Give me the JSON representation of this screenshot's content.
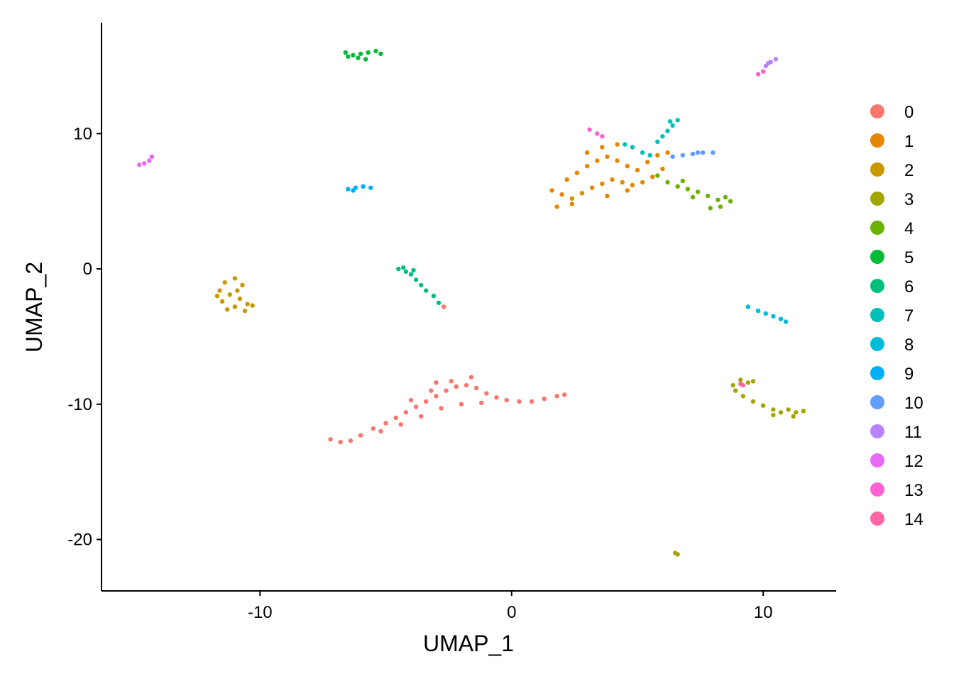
{
  "chart_data": {
    "type": "scatter",
    "title": "",
    "xlabel": "UMAP_1",
    "ylabel": "UMAP_2",
    "xlim": [
      -16.3,
      12.9
    ],
    "ylim": [
      -23.8,
      18.2
    ],
    "x_ticks": [
      -10,
      0,
      10
    ],
    "y_ticks": [
      -20,
      -10,
      0,
      10
    ],
    "x_tick_labels": [
      "-10",
      "0",
      "10"
    ],
    "y_tick_labels": [
      "-20",
      "-10",
      "0",
      "10"
    ],
    "grid": false,
    "legend_position": "right",
    "series": [
      {
        "name": "0",
        "color": "#F8766D",
        "points": [
          [
            -7.2,
            -12.6
          ],
          [
            -6.8,
            -12.8
          ],
          [
            -6.4,
            -12.7
          ],
          [
            -6.0,
            -12.3
          ],
          [
            -5.5,
            -11.8
          ],
          [
            -5.0,
            -11.4
          ],
          [
            -4.6,
            -11.0
          ],
          [
            -4.2,
            -10.6
          ],
          [
            -3.8,
            -10.2
          ],
          [
            -3.4,
            -9.8
          ],
          [
            -3.0,
            -9.4
          ],
          [
            -2.6,
            -9.0
          ],
          [
            -2.2,
            -8.7
          ],
          [
            -1.8,
            -8.6
          ],
          [
            -1.4,
            -8.8
          ],
          [
            -1.0,
            -9.2
          ],
          [
            -0.6,
            -9.5
          ],
          [
            -0.2,
            -9.7
          ],
          [
            0.3,
            -9.8
          ],
          [
            0.8,
            -9.8
          ],
          [
            1.3,
            -9.6
          ],
          [
            1.8,
            -9.4
          ],
          [
            2.1,
            -9.3
          ],
          [
            -5.2,
            -12.0
          ],
          [
            -4.4,
            -11.5
          ],
          [
            -3.6,
            -10.9
          ],
          [
            -2.8,
            -10.3
          ],
          [
            -2.0,
            -10.0
          ],
          [
            -1.2,
            -9.9
          ],
          [
            -4.0,
            -9.7
          ],
          [
            -3.2,
            -9.0
          ],
          [
            -2.4,
            -8.3
          ],
          [
            -1.6,
            -8.0
          ],
          [
            -3.0,
            -8.4
          ],
          [
            -2.7,
            -2.8
          ]
        ]
      },
      {
        "name": "1",
        "color": "#E58700",
        "points": [
          [
            1.6,
            5.8
          ],
          [
            2.0,
            5.5
          ],
          [
            2.4,
            5.2
          ],
          [
            2.8,
            5.6
          ],
          [
            3.2,
            6.0
          ],
          [
            3.6,
            6.3
          ],
          [
            4.0,
            6.6
          ],
          [
            4.4,
            6.4
          ],
          [
            4.8,
            6.2
          ],
          [
            5.2,
            6.4
          ],
          [
            5.6,
            6.8
          ],
          [
            2.2,
            6.6
          ],
          [
            2.6,
            7.1
          ],
          [
            3.0,
            7.6
          ],
          [
            3.4,
            8.0
          ],
          [
            3.8,
            8.3
          ],
          [
            4.2,
            8.0
          ],
          [
            4.6,
            7.6
          ],
          [
            5.0,
            7.3
          ],
          [
            5.4,
            7.9
          ],
          [
            5.8,
            8.4
          ],
          [
            3.0,
            8.6
          ],
          [
            3.6,
            9.0
          ],
          [
            4.2,
            9.2
          ],
          [
            1.8,
            4.6
          ],
          [
            2.4,
            4.8
          ],
          [
            3.8,
            5.4
          ],
          [
            4.6,
            5.8
          ],
          [
            6.0,
            7.4
          ],
          [
            6.2,
            8.6
          ]
        ]
      },
      {
        "name": "2",
        "color": "#C99800",
        "points": [
          [
            -11.4,
            -1.0
          ],
          [
            -11.0,
            -0.7
          ],
          [
            -10.7,
            -1.2
          ],
          [
            -11.6,
            -1.6
          ],
          [
            -11.2,
            -1.9
          ],
          [
            -10.8,
            -2.2
          ],
          [
            -10.5,
            -2.6
          ],
          [
            -11.5,
            -2.4
          ],
          [
            -11.0,
            -2.8
          ],
          [
            -10.6,
            -3.1
          ],
          [
            -11.3,
            -3.0
          ],
          [
            -10.3,
            -2.7
          ],
          [
            -11.7,
            -2.0
          ],
          [
            -10.9,
            -1.6
          ]
        ]
      },
      {
        "name": "3",
        "color": "#A3A500",
        "points": [
          [
            8.8,
            -8.6
          ],
          [
            9.1,
            -8.2
          ],
          [
            9.4,
            -8.4
          ],
          [
            9.6,
            -8.3
          ],
          [
            8.9,
            -9.0
          ],
          [
            9.2,
            -9.4
          ],
          [
            9.6,
            -9.8
          ],
          [
            10.0,
            -10.1
          ],
          [
            10.4,
            -10.4
          ],
          [
            10.7,
            -10.6
          ],
          [
            11.0,
            -10.4
          ],
          [
            11.3,
            -10.6
          ],
          [
            11.6,
            -10.5
          ],
          [
            11.2,
            -10.9
          ],
          [
            10.4,
            -10.8
          ],
          [
            6.5,
            -21.0
          ],
          [
            6.6,
            -21.1
          ]
        ]
      },
      {
        "name": "4",
        "color": "#6BB100",
        "points": [
          [
            6.2,
            6.4
          ],
          [
            6.6,
            6.1
          ],
          [
            7.0,
            5.9
          ],
          [
            7.4,
            5.7
          ],
          [
            7.8,
            5.4
          ],
          [
            8.2,
            5.1
          ],
          [
            8.5,
            5.3
          ],
          [
            8.7,
            5.0
          ],
          [
            8.3,
            4.6
          ],
          [
            7.9,
            4.5
          ],
          [
            7.2,
            5.3
          ],
          [
            6.8,
            6.5
          ],
          [
            5.8,
            6.9
          ]
        ]
      },
      {
        "name": "5",
        "color": "#00BA38",
        "points": [
          [
            -6.6,
            16.0
          ],
          [
            -6.3,
            15.8
          ],
          [
            -6.0,
            15.9
          ],
          [
            -5.7,
            16.0
          ],
          [
            -5.4,
            16.1
          ],
          [
            -5.2,
            15.9
          ],
          [
            -6.1,
            15.6
          ],
          [
            -5.8,
            15.5
          ],
          [
            -6.5,
            15.7
          ]
        ]
      },
      {
        "name": "6",
        "color": "#00BF7D",
        "points": [
          [
            -4.5,
            0.0
          ],
          [
            -4.2,
            -0.2
          ],
          [
            -4.0,
            -0.4
          ],
          [
            -3.8,
            -0.8
          ],
          [
            -3.6,
            -1.2
          ],
          [
            -3.4,
            -1.6
          ],
          [
            -3.1,
            -2.0
          ],
          [
            -2.9,
            -2.5
          ],
          [
            -4.3,
            0.1
          ],
          [
            -3.9,
            -0.1
          ]
        ]
      },
      {
        "name": "7",
        "color": "#00C0B8",
        "points": [
          [
            5.8,
            9.4
          ],
          [
            6.0,
            9.8
          ],
          [
            6.2,
            10.2
          ],
          [
            6.4,
            10.6
          ],
          [
            6.6,
            11.0
          ],
          [
            6.3,
            10.9
          ],
          [
            4.5,
            9.2
          ],
          [
            4.8,
            9.0
          ],
          [
            5.2,
            8.6
          ],
          [
            5.5,
            8.4
          ]
        ]
      },
      {
        "name": "8",
        "color": "#00BCD8",
        "points": [
          [
            9.4,
            -2.8
          ],
          [
            9.8,
            -3.1
          ],
          [
            10.1,
            -3.3
          ],
          [
            10.4,
            -3.5
          ],
          [
            10.7,
            -3.7
          ],
          [
            10.9,
            -3.9
          ]
        ]
      },
      {
        "name": "9",
        "color": "#00B0F6",
        "points": [
          [
            -6.5,
            5.9
          ],
          [
            -6.2,
            6.0
          ],
          [
            -5.9,
            6.1
          ],
          [
            -5.6,
            6.0
          ],
          [
            -6.3,
            5.8
          ]
        ]
      },
      {
        "name": "10",
        "color": "#619CFF",
        "points": [
          [
            6.4,
            8.3
          ],
          [
            6.8,
            8.4
          ],
          [
            7.2,
            8.5
          ],
          [
            7.6,
            8.6
          ],
          [
            8.0,
            8.6
          ],
          [
            7.4,
            8.6
          ]
        ]
      },
      {
        "name": "11",
        "color": "#B983FF",
        "points": [
          [
            10.1,
            15.0
          ],
          [
            10.3,
            15.3
          ],
          [
            10.5,
            15.5
          ],
          [
            10.2,
            15.2
          ]
        ]
      },
      {
        "name": "12",
        "color": "#E76BF3",
        "points": [
          [
            -14.8,
            7.7
          ],
          [
            -14.6,
            7.8
          ],
          [
            -14.4,
            8.0
          ],
          [
            -14.3,
            8.3
          ]
        ]
      },
      {
        "name": "13",
        "color": "#FD61D1",
        "points": [
          [
            3.1,
            10.3
          ],
          [
            3.4,
            10.0
          ],
          [
            3.6,
            9.8
          ],
          [
            9.8,
            14.4
          ],
          [
            10.0,
            14.6
          ]
        ]
      },
      {
        "name": "14",
        "color": "#FF67A4",
        "points": [
          [
            9.1,
            -8.5
          ],
          [
            9.2,
            -8.6
          ]
        ]
      }
    ]
  }
}
